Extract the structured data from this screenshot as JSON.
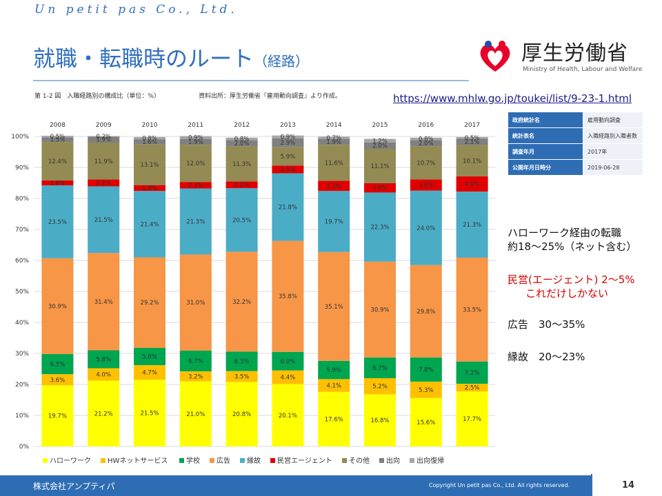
{
  "header": {
    "brand": "Un petit pas Co., Ltd.",
    "title": "就職・転職時のルート",
    "title_sub": "（経路）",
    "ministry_name": "厚生労働省",
    "ministry_en": "Ministry of Health, Labour and Welfare"
  },
  "figure": {
    "caption": "第 1-2 図　入職経路別の構成比（単位：%）",
    "source": "資料出所：厚生労働省『雇用動向調査』より作成。",
    "url": "https://www.mhlw.go.jp/toukei/list/9-23-1.html"
  },
  "info_table": [
    {
      "key": "政府統計名",
      "value": "雇用動向調査"
    },
    {
      "key": "統計表名",
      "value": "入職経路別入職者数"
    },
    {
      "key": "調査年月",
      "value": "2017年"
    },
    {
      "key": "公開年月日時分",
      "value": "2019-06-28"
    }
  ],
  "notes": {
    "hw_line1": "ハローワーク経由の転職",
    "hw_line2": "約18～25%（ネット含む）",
    "agent_line1": "民営(エージェント) 2～5%",
    "agent_line2": "これだけしかない",
    "ad": "広告　30～35%",
    "kin": "縁故　20～23%"
  },
  "footer": {
    "company": "株式会社アンプティパ",
    "copyright": "Copyright  Un petit pas Co., Ltd.  All rights reserved.",
    "page": "14"
  },
  "chart_data": {
    "type": "bar",
    "stacked": true,
    "categories": [
      "2008",
      "2009",
      "2010",
      "2011",
      "2012",
      "2013",
      "2014",
      "2015",
      "2016",
      "2017"
    ],
    "ylim": [
      0,
      100
    ],
    "yticks": [
      "0%",
      "10%",
      "20%",
      "30%",
      "40%",
      "50%",
      "60%",
      "70%",
      "80%",
      "90%",
      "100%"
    ],
    "legend_position": "bottom",
    "series": [
      {
        "name": "ハローワーク",
        "color": "#ffff00",
        "values": [
          19.7,
          21.2,
          21.5,
          21.0,
          20.8,
          20.1,
          17.6,
          16.8,
          15.6,
          17.7
        ],
        "labels": [
          "19.7%",
          "21.2%",
          "21.5%",
          "21.0%",
          "20.8%",
          "20.1%",
          "17.6%",
          "16.8%",
          "15.6%",
          "17.7%"
        ]
      },
      {
        "name": "HWネットサービス",
        "color": "#ffc000",
        "values": [
          3.6,
          4.0,
          4.7,
          3.2,
          3.5,
          4.4,
          4.1,
          5.2,
          5.3,
          2.5
        ],
        "labels": [
          "3.6%",
          "4.0%",
          "4.7%",
          "3.2%",
          "3.5%",
          "4.4%",
          "4.1%",
          "5.2%",
          "5.3%",
          "2.5%"
        ]
      },
      {
        "name": "学校",
        "color": "#00a550",
        "values": [
          6.5,
          5.8,
          5.6,
          6.7,
          6.3,
          6.0,
          5.9,
          6.7,
          7.8,
          7.2
        ],
        "labels": [
          "6.5%",
          "5.8%",
          "5.6%",
          "6.7%",
          "6.3%",
          "6.0%",
          "5.9%",
          "6.7%",
          "7.8%",
          "7.2%"
        ]
      },
      {
        "name": "広告",
        "color": "#f79646",
        "values": [
          30.9,
          31.4,
          29.2,
          31.0,
          32.2,
          35.8,
          35.1,
          30.9,
          29.8,
          33.5
        ],
        "labels": [
          "30.9%",
          "31.4%",
          "29.2%",
          "31.0%",
          "32.2%",
          "35.8%",
          "35.1%",
          "30.9%",
          "29.8%",
          "33.5%"
        ]
      },
      {
        "name": "縁故",
        "color": "#4bacc6",
        "values": [
          23.5,
          21.5,
          21.4,
          21.3,
          20.5,
          21.8,
          19.7,
          22.3,
          24.0,
          21.3
        ],
        "labels": [
          "23.5%",
          "21.5%",
          "21.4%",
          "21.3%",
          "20.5%",
          "21.8%",
          "19.7%",
          "22.3%",
          "24.0%",
          "21.3%"
        ]
      },
      {
        "name": "民営エージェント",
        "color": "#e00000",
        "values": [
          1.6,
          2.2,
          1.9,
          2.1,
          2.2,
          2.5,
          3.3,
          3.0,
          3.6,
          4.9
        ],
        "labels": [
          "1.6%",
          "2.2%",
          "1.9%",
          "2.1%",
          "2.2%",
          "2.5%",
          "3.3%",
          "3.0%",
          "3.6%",
          "4.9%"
        ]
      },
      {
        "name": "その他",
        "color": "#948a54",
        "values": [
          12.4,
          11.9,
          13.1,
          12.0,
          11.3,
          5.9,
          11.6,
          11.1,
          10.7,
          10.1
        ],
        "labels": [
          "12.4%",
          "11.9%",
          "13.1%",
          "12.0%",
          "11.3%",
          "5.9%",
          "11.6%",
          "11.1%",
          "10.7%",
          "10.1%"
        ]
      },
      {
        "name": "出向",
        "color": "#808080",
        "values": [
          1.5,
          1.9,
          1.6,
          1.9,
          2.0,
          2.9,
          1.9,
          2.0,
          2.0,
          2.1
        ],
        "labels": [
          "1.5%",
          "1.9%",
          "1.6%",
          "1.9%",
          "2.0%",
          "2.9%",
          "1.9%",
          "2.0%",
          "2.0%",
          "2.1%"
        ]
      },
      {
        "name": "出向復帰",
        "color": "#a6a6a6",
        "values": [
          0.5,
          0.2,
          0.8,
          0.9,
          0.8,
          0.9,
          0.7,
          1.2,
          0.8,
          0.5
        ],
        "labels": [
          "0.5%",
          "0.2%",
          "0.8%",
          "0.9%",
          "0.8%",
          "0.9%",
          "0.7%",
          "1.2%",
          "0.8%",
          "0.5%"
        ]
      }
    ]
  }
}
